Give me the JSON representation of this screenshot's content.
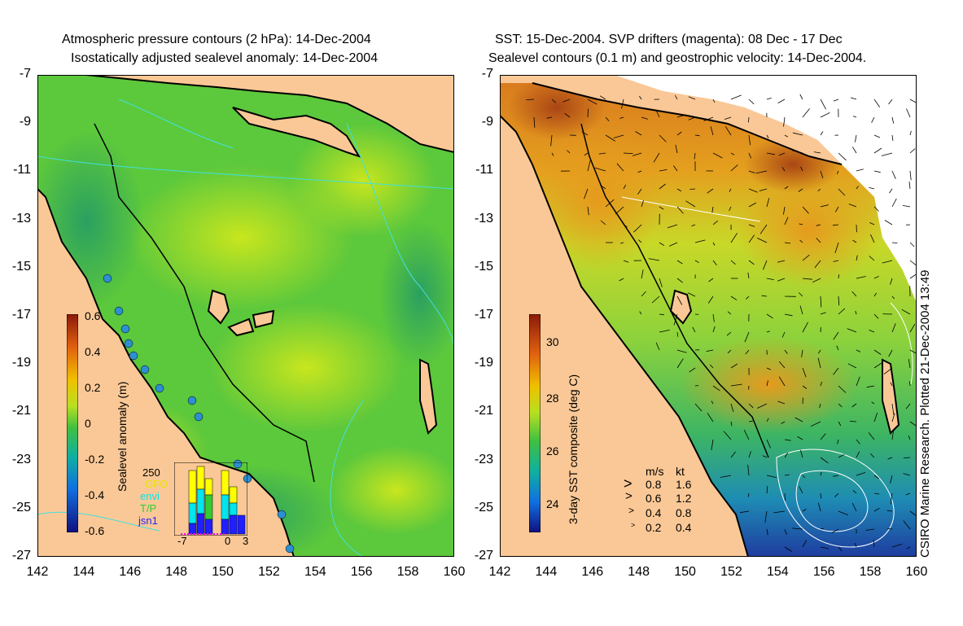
{
  "left_panel": {
    "title_line1": "Atmospheric pressure contours (2 hPa): 14-Dec-2004",
    "title_line2": "Isostatically adjusted sealevel anomaly: 14-Dec-2004",
    "colorbar_label": "Sealevel anomaly (m)",
    "colorbar_ticks": [
      "0.6",
      "0.4",
      "0.2",
      "0",
      "-0.2",
      "-0.4",
      "-0.6"
    ],
    "inset": {
      "ymax_label": "250",
      "legend": [
        {
          "name": "GFO",
          "color": "#ffff00"
        },
        {
          "name": "envi",
          "color": "#00e5ee"
        },
        {
          "name": "T/P",
          "color": "#33cc33"
        },
        {
          "name": "jsn1",
          "color": "#2020ff"
        }
      ],
      "x_ticks": [
        "-7",
        "0",
        "3"
      ]
    }
  },
  "right_panel": {
    "title_line1": "SST: 15-Dec-2004. SVP drifters (magenta): 08 Dec - 17 Dec",
    "title_line2": "Sealevel contours (0.1 m) and geostrophic velocity: 14-Dec-2004.",
    "colorbar_label": "3-day SST composite (deg C)",
    "colorbar_ticks": [
      "30",
      "28",
      "26",
      "24"
    ],
    "velocity_key": {
      "header_ms": "m/s",
      "header_kt": "kt",
      "rows": [
        {
          "ms": "0.8",
          "kt": "1.6"
        },
        {
          "ms": "0.6",
          "kt": "1.2"
        },
        {
          "ms": "0.4",
          "kt": "0.8"
        },
        {
          "ms": "0.2",
          "kt": "0.4"
        }
      ]
    }
  },
  "y_ticks": [
    "-7",
    "-9",
    "-11",
    "-13",
    "-15",
    "-17",
    "-19",
    "-21",
    "-23",
    "-25",
    "-27"
  ],
  "x_ticks": [
    "142",
    "144",
    "146",
    "148",
    "150",
    "152",
    "154",
    "156",
    "158",
    "160"
  ],
  "credit": "CSIRO Marine Research. Plotted 21-Dec-2004 13:49",
  "colors": {
    "land": "#fac896",
    "sea_green": "#4cc44c",
    "sea_yellow": "#c8e61e",
    "sst_orange": "#e68c14",
    "sst_brown": "#aa4614",
    "sst_blue": "#1446c8",
    "contour_cyan": "#40e0e0"
  }
}
